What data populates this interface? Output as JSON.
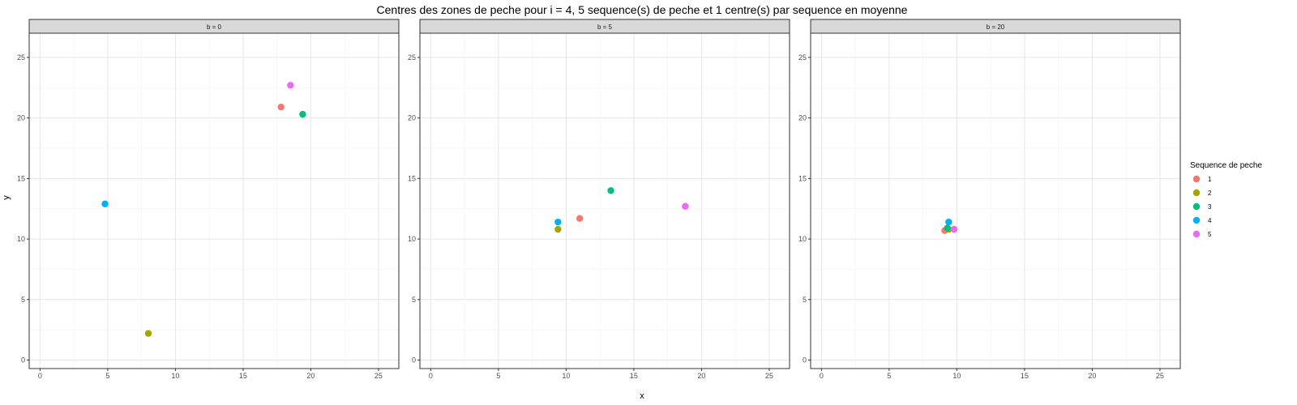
{
  "chart_data": {
    "type": "scatter",
    "title": "Centres des zones de peche pour i = 4, 5 sequence(s) de peche et 1 centre(s) par sequence en moyenne",
    "xlabel": "x",
    "ylabel": "y",
    "xlim": [
      -0.8,
      26.5
    ],
    "ylim": [
      -0.7,
      27
    ],
    "xticks": [
      "0",
      "5",
      "10",
      "15",
      "20",
      "25"
    ],
    "yticks": [
      "0",
      "5",
      "10",
      "15",
      "20",
      "25"
    ],
    "grid": true,
    "legend": {
      "title": "Sequence de peche",
      "position": "right",
      "entries": [
        {
          "label": "1",
          "color": "#F8766D"
        },
        {
          "label": "2",
          "color": "#A3A500"
        },
        {
          "label": "3",
          "color": "#00BF7D"
        },
        {
          "label": "4",
          "color": "#00B0F6"
        },
        {
          "label": "5",
          "color": "#E76BF3"
        }
      ]
    },
    "panels": [
      {
        "strip": "b = 0",
        "points": [
          {
            "series": "1",
            "x": 17.8,
            "y": 20.9
          },
          {
            "series": "2",
            "x": 8.0,
            "y": 2.2
          },
          {
            "series": "3",
            "x": 19.4,
            "y": 20.3
          },
          {
            "series": "4",
            "x": 4.8,
            "y": 12.9
          },
          {
            "series": "5",
            "x": 18.5,
            "y": 22.7
          }
        ]
      },
      {
        "strip": "b = 5",
        "points": [
          {
            "series": "1",
            "x": 11.0,
            "y": 11.7
          },
          {
            "series": "2",
            "x": 9.4,
            "y": 10.8
          },
          {
            "series": "3",
            "x": 13.3,
            "y": 14.0
          },
          {
            "series": "4",
            "x": 9.4,
            "y": 11.4
          },
          {
            "series": "5",
            "x": 18.8,
            "y": 12.7
          }
        ]
      },
      {
        "strip": "b = 20",
        "points": [
          {
            "series": "1",
            "x": 9.1,
            "y": 10.7
          },
          {
            "series": "2",
            "x": 9.4,
            "y": 10.8
          },
          {
            "series": "3",
            "x": 9.3,
            "y": 10.9
          },
          {
            "series": "4",
            "x": 9.4,
            "y": 11.4
          },
          {
            "series": "5",
            "x": 9.8,
            "y": 10.8
          }
        ]
      }
    ]
  }
}
